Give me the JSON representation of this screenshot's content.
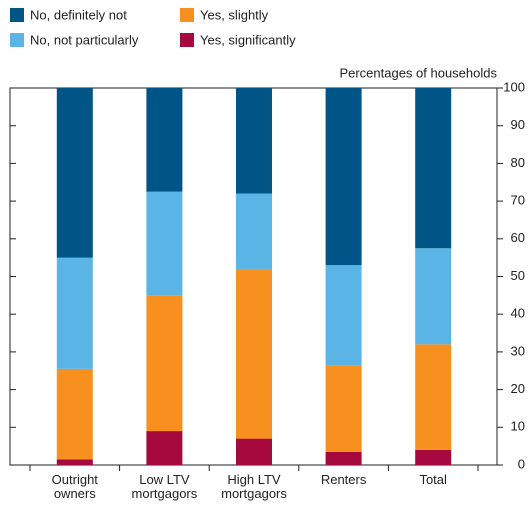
{
  "chart_data": {
    "type": "stacked-bar",
    "y_label": "Percentages of households",
    "categories": [
      "Outright owners",
      "Low LTV mortgagors",
      "High LTV mortgagors",
      "Renters",
      "Total"
    ],
    "series": [
      {
        "name": "Yes, significantly",
        "color": "#a6093d",
        "values": [
          1.5,
          9,
          7,
          3.5,
          4
        ]
      },
      {
        "name": "Yes, slightly",
        "color": "#f7901e",
        "values": [
          24,
          36,
          45,
          23,
          28
        ]
      },
      {
        "name": "No, not particularly",
        "color": "#5ab4e5",
        "values": [
          29.5,
          27.5,
          20,
          26.5,
          25.5
        ]
      },
      {
        "name": "No, definitely not",
        "color": "#005587",
        "values": [
          45,
          27.5,
          28,
          47,
          42.5
        ]
      }
    ],
    "legend_order": [
      3,
      1,
      2,
      0
    ],
    "ylim": [
      0,
      100
    ],
    "yticks": [
      0,
      10,
      20,
      30,
      40,
      50,
      60,
      70,
      80,
      90,
      100
    ]
  }
}
